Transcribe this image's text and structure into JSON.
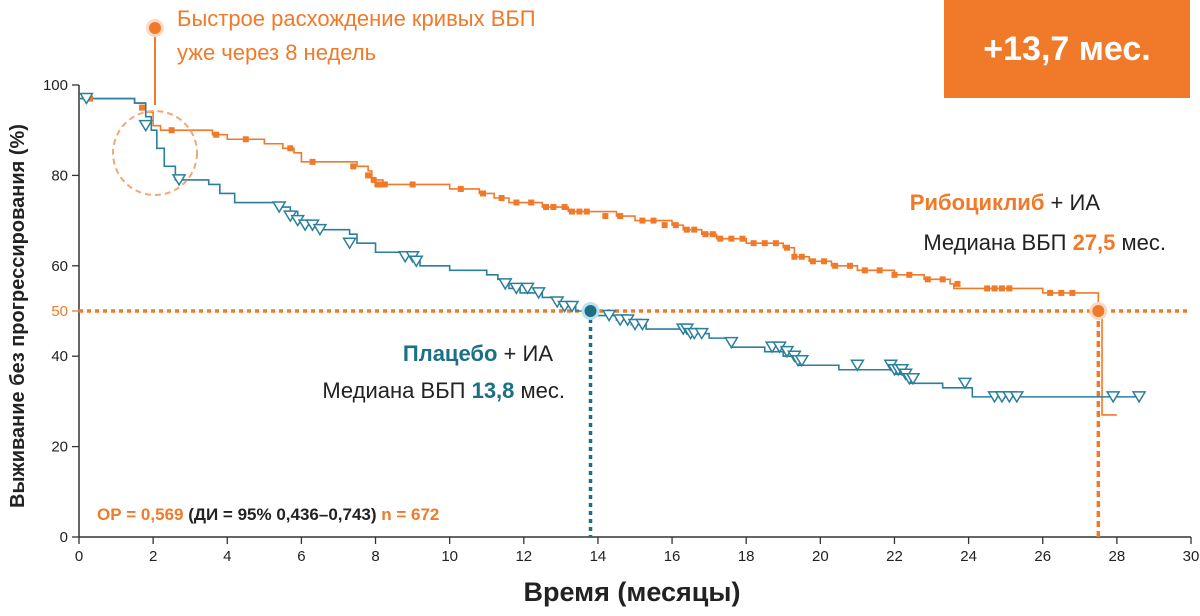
{
  "badge": "+13,7 мес.",
  "annotation": {
    "line1": "Быстрое расхождение кривых ВБП",
    "line2": "уже через 8 недель"
  },
  "ribociclib_label": {
    "name": "Рибоциклиб",
    "suffix": " + ИА",
    "median_prefix": "Медиана ВБП ",
    "median_value": "27,5",
    "median_suffix": " мес."
  },
  "placebo_label": {
    "name": "Плацебо",
    "suffix": " + ИА",
    "median_prefix": "Медиана ВБП ",
    "median_value": "13,8",
    "median_suffix": " мес."
  },
  "stats": {
    "hr": "ОР = 0,569",
    "ci": " (ДИ = 95% 0,436–0,743) ",
    "n": "n = 672"
  },
  "colors": {
    "ribociclib": "#f07a2a",
    "placebo": "#2a7f9b",
    "dark_teal": "#1d6f86"
  },
  "chart_data": {
    "type": "line",
    "title": "",
    "xlabel": "Время (месяцы)",
    "ylabel": "Выживание без прогрессирования (%)",
    "xlim": [
      0,
      30
    ],
    "ylim": [
      0,
      100
    ],
    "x_ticks": [
      0,
      2,
      4,
      6,
      8,
      10,
      12,
      14,
      16,
      18,
      20,
      22,
      24,
      26,
      28,
      30
    ],
    "y_ticks": [
      0,
      20,
      40,
      50,
      60,
      80,
      100
    ],
    "y_tick_labels": [
      "0",
      "20",
      "40",
      "50",
      "60",
      "80",
      "100"
    ],
    "reference_line_y": 50,
    "series": [
      {
        "name": "Рибоциклиб + ИА",
        "color": "#f07a2a",
        "median": 27.5,
        "points": [
          [
            0,
            97
          ],
          [
            1.5,
            96
          ],
          [
            1.8,
            94
          ],
          [
            2.0,
            91
          ],
          [
            2.2,
            90
          ],
          [
            3.0,
            90
          ],
          [
            3.6,
            89
          ],
          [
            4.0,
            88
          ],
          [
            5.0,
            87
          ],
          [
            5.5,
            86
          ],
          [
            5.8,
            85
          ],
          [
            6.0,
            83
          ],
          [
            7.5,
            82
          ],
          [
            7.8,
            81
          ],
          [
            7.9,
            79
          ],
          [
            8.2,
            78
          ],
          [
            10.0,
            77
          ],
          [
            10.8,
            76
          ],
          [
            11.2,
            75
          ],
          [
            11.6,
            74
          ],
          [
            12.5,
            73
          ],
          [
            13.2,
            72
          ],
          [
            14.5,
            71
          ],
          [
            15.0,
            70
          ],
          [
            16.0,
            69
          ],
          [
            16.3,
            68
          ],
          [
            16.8,
            67
          ],
          [
            17.2,
            66
          ],
          [
            18.0,
            65
          ],
          [
            19.0,
            64
          ],
          [
            19.3,
            62
          ],
          [
            19.7,
            61
          ],
          [
            20.3,
            60
          ],
          [
            21.0,
            59
          ],
          [
            22.0,
            58
          ],
          [
            22.8,
            57
          ],
          [
            23.5,
            56
          ],
          [
            23.6,
            55
          ],
          [
            25.0,
            55
          ],
          [
            26.0,
            54
          ],
          [
            27.5,
            50
          ],
          [
            27.6,
            27
          ],
          [
            28.0,
            27
          ]
        ],
        "censored": [
          [
            0.3,
            97
          ],
          [
            1.7,
            95
          ],
          [
            2.5,
            90
          ],
          [
            3.7,
            89
          ],
          [
            4.5,
            88
          ],
          [
            5.7,
            86
          ],
          [
            6.3,
            83
          ],
          [
            7.4,
            82
          ],
          [
            7.8,
            80
          ],
          [
            7.95,
            79
          ],
          [
            8.05,
            78
          ],
          [
            8.15,
            78
          ],
          [
            8.25,
            78
          ],
          [
            9.0,
            78
          ],
          [
            10.3,
            77
          ],
          [
            10.9,
            76
          ],
          [
            11.4,
            75
          ],
          [
            11.8,
            74
          ],
          [
            12.2,
            74
          ],
          [
            12.6,
            73
          ],
          [
            12.8,
            73
          ],
          [
            13.1,
            73
          ],
          [
            13.3,
            72
          ],
          [
            13.5,
            72
          ],
          [
            13.7,
            72
          ],
          [
            14.2,
            71
          ],
          [
            14.6,
            71
          ],
          [
            15.2,
            70
          ],
          [
            15.5,
            70
          ],
          [
            15.8,
            69
          ],
          [
            16.1,
            69
          ],
          [
            16.4,
            68
          ],
          [
            16.6,
            68
          ],
          [
            16.9,
            67
          ],
          [
            17.1,
            67
          ],
          [
            17.3,
            66
          ],
          [
            17.6,
            66
          ],
          [
            17.9,
            66
          ],
          [
            18.2,
            65
          ],
          [
            18.5,
            65
          ],
          [
            18.8,
            65
          ],
          [
            19.1,
            64
          ],
          [
            19.3,
            62
          ],
          [
            19.5,
            62
          ],
          [
            19.8,
            61
          ],
          [
            20.1,
            61
          ],
          [
            20.4,
            60
          ],
          [
            20.8,
            60
          ],
          [
            21.2,
            59
          ],
          [
            21.6,
            59
          ],
          [
            22.0,
            58
          ],
          [
            22.4,
            58
          ],
          [
            22.9,
            57
          ],
          [
            23.3,
            57
          ],
          [
            23.7,
            56
          ],
          [
            24.5,
            55
          ],
          [
            24.7,
            55
          ],
          [
            24.9,
            55
          ],
          [
            25.1,
            55
          ],
          [
            26.2,
            54
          ],
          [
            26.5,
            54
          ],
          [
            26.8,
            54
          ]
        ]
      },
      {
        "name": "Плацебо + ИА",
        "color": "#2a7f9b",
        "median": 13.8,
        "points": [
          [
            0,
            97
          ],
          [
            1.5,
            96
          ],
          [
            1.8,
            93
          ],
          [
            1.95,
            90
          ],
          [
            2.1,
            86
          ],
          [
            2.3,
            82
          ],
          [
            2.6,
            79
          ],
          [
            3.5,
            78
          ],
          [
            3.8,
            76
          ],
          [
            4.2,
            74
          ],
          [
            5.5,
            73
          ],
          [
            5.7,
            72
          ],
          [
            5.9,
            70
          ],
          [
            6.1,
            69
          ],
          [
            6.5,
            68
          ],
          [
            7.3,
            67
          ],
          [
            7.5,
            65
          ],
          [
            8.0,
            63
          ],
          [
            9.0,
            62
          ],
          [
            9.2,
            60
          ],
          [
            10.0,
            59
          ],
          [
            11.0,
            58
          ],
          [
            11.3,
            57
          ],
          [
            11.6,
            55
          ],
          [
            11.9,
            54
          ],
          [
            12.5,
            53
          ],
          [
            13.0,
            51
          ],
          [
            13.4,
            50
          ],
          [
            14.0,
            49
          ],
          [
            14.5,
            48
          ],
          [
            14.9,
            47
          ],
          [
            15.3,
            46
          ],
          [
            16.5,
            45
          ],
          [
            17.0,
            44
          ],
          [
            17.6,
            42
          ],
          [
            18.5,
            41
          ],
          [
            19.0,
            40
          ],
          [
            19.4,
            38
          ],
          [
            20.5,
            37
          ],
          [
            21.5,
            37
          ],
          [
            22.0,
            36
          ],
          [
            22.4,
            34
          ],
          [
            23.3,
            33
          ],
          [
            24.0,
            33
          ],
          [
            24.1,
            31
          ],
          [
            25.8,
            31
          ],
          [
            28.7,
            31
          ]
        ],
        "censored": [
          [
            0.2,
            97
          ],
          [
            1.8,
            91
          ],
          [
            2.7,
            79
          ],
          [
            5.4,
            73
          ],
          [
            5.7,
            71
          ],
          [
            5.9,
            70
          ],
          [
            6.1,
            69
          ],
          [
            6.3,
            69
          ],
          [
            6.5,
            68
          ],
          [
            7.3,
            65
          ],
          [
            8.8,
            62
          ],
          [
            9.0,
            62
          ],
          [
            9.1,
            61
          ],
          [
            11.5,
            56
          ],
          [
            11.8,
            55
          ],
          [
            12.1,
            55
          ],
          [
            12.4,
            54
          ],
          [
            12.9,
            52
          ],
          [
            13.1,
            51
          ],
          [
            13.3,
            51
          ],
          [
            14.3,
            49
          ],
          [
            14.6,
            48
          ],
          [
            14.8,
            48
          ],
          [
            15.0,
            47
          ],
          [
            15.2,
            47
          ],
          [
            16.3,
            46
          ],
          [
            16.4,
            46
          ],
          [
            16.5,
            45
          ],
          [
            16.6,
            45
          ],
          [
            16.8,
            45
          ],
          [
            17.6,
            43
          ],
          [
            18.7,
            42
          ],
          [
            18.9,
            42
          ],
          [
            19.1,
            41
          ],
          [
            19.3,
            40
          ],
          [
            19.4,
            39
          ],
          [
            19.5,
            39
          ],
          [
            21.0,
            38
          ],
          [
            21.9,
            38
          ],
          [
            22.0,
            37
          ],
          [
            22.1,
            37
          ],
          [
            22.2,
            37
          ],
          [
            22.3,
            36
          ],
          [
            22.4,
            35
          ],
          [
            22.5,
            35
          ],
          [
            23.9,
            34
          ],
          [
            24.7,
            31
          ],
          [
            24.9,
            31
          ],
          [
            25.1,
            31
          ],
          [
            25.3,
            31
          ],
          [
            27.9,
            31
          ],
          [
            28.6,
            31
          ]
        ]
      }
    ]
  }
}
